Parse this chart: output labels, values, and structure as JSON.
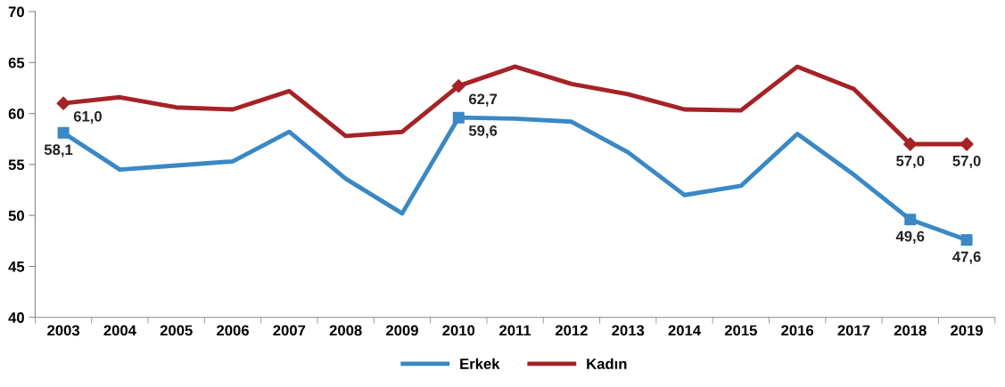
{
  "chart_data": {
    "type": "line",
    "categories": [
      "2003",
      "2004",
      "2005",
      "2006",
      "2007",
      "2008",
      "2009",
      "2010",
      "2011",
      "2012",
      "2013",
      "2014",
      "2015",
      "2016",
      "2017",
      "2018",
      "2019"
    ],
    "series": [
      {
        "name": "Erkek",
        "color": "#3a88c5",
        "values": [
          58.1,
          54.5,
          54.9,
          55.3,
          58.2,
          53.6,
          50.2,
          59.6,
          59.5,
          59.2,
          56.2,
          52.0,
          52.9,
          58.0,
          54.0,
          49.6,
          47.6
        ]
      },
      {
        "name": "Kadın",
        "color": "#a52226",
        "values": [
          61.0,
          61.6,
          60.6,
          60.4,
          62.2,
          57.8,
          58.2,
          62.7,
          64.6,
          62.9,
          61.9,
          60.4,
          60.3,
          64.6,
          62.4,
          57.0,
          57.0
        ]
      },
      {
        "type": "scatter",
        "color": "#3a88c5",
        "marker": "square",
        "values": [
          58.1,
          null,
          null,
          null,
          null,
          null,
          null,
          59.6,
          null,
          null,
          null,
          null,
          null,
          null,
          null,
          49.6,
          47.6
        ],
        "value_labels": [
          "58,1",
          null,
          null,
          null,
          null,
          null,
          null,
          "59,6",
          null,
          null,
          null,
          null,
          null,
          null,
          null,
          "49,6",
          "47,6"
        ]
      },
      {
        "type": "scatter",
        "color": "#a52226",
        "marker": "diamond",
        "values": [
          61.0,
          null,
          null,
          null,
          null,
          null,
          null,
          62.7,
          null,
          null,
          null,
          null,
          null,
          null,
          null,
          57.0,
          57.0
        ],
        "value_labels": [
          "61,0",
          null,
          null,
          null,
          null,
          null,
          null,
          "62,7",
          null,
          null,
          null,
          null,
          null,
          null,
          null,
          "57,0",
          "57,0"
        ]
      }
    ],
    "ylim": [
      40,
      70
    ],
    "yticks": [
      40,
      45,
      50,
      55,
      60,
      65,
      70
    ],
    "grid": false,
    "legend": "bottom",
    "line_style": "solid"
  }
}
